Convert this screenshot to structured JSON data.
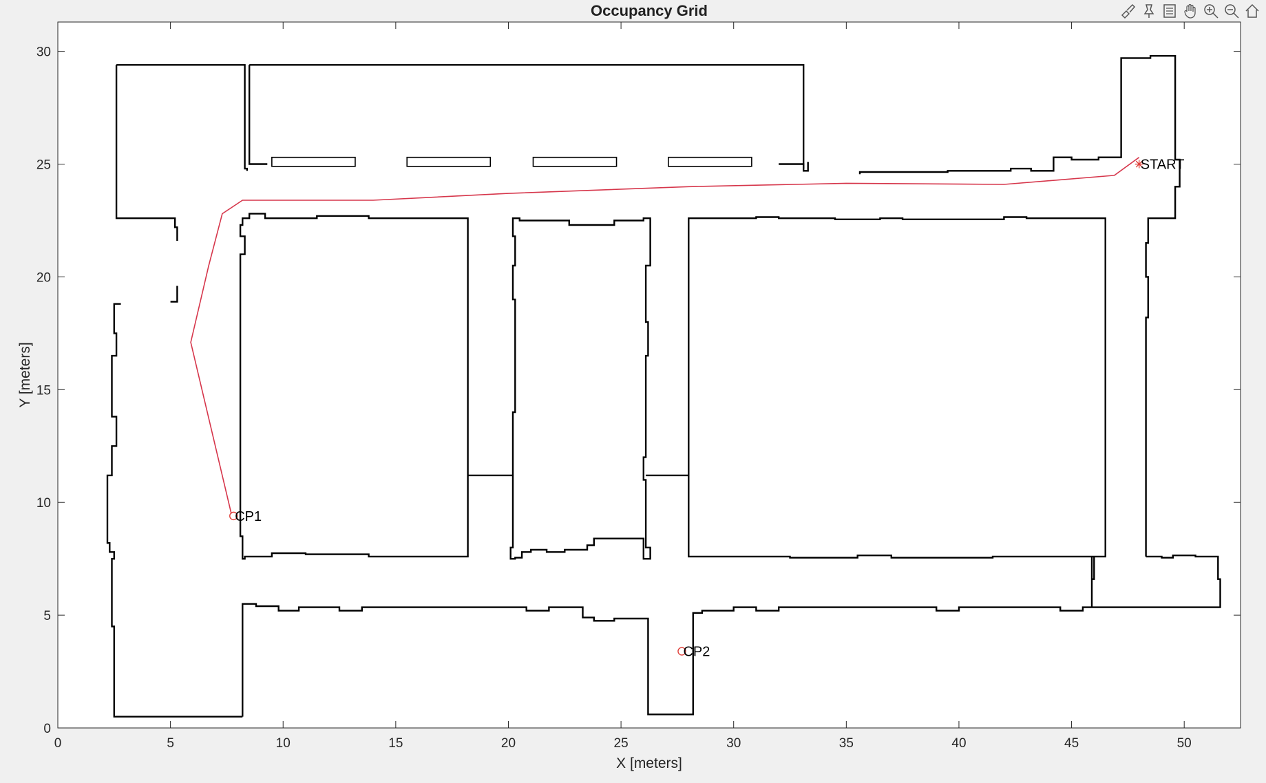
{
  "toolbar": {
    "icons": [
      "brush-icon",
      "data-tips-icon",
      "legend-icon",
      "pan-icon",
      "zoom-in-icon",
      "zoom-out-icon",
      "home-icon"
    ]
  },
  "colors": {
    "walls": "#000000",
    "path": "#d6364b",
    "markers": "#e0403a",
    "background": "#f0f0f0",
    "axes_bg": "#ffffff"
  },
  "chart_data": {
    "type": "line",
    "title": "Occupancy Grid",
    "xlabel": "X [meters]",
    "ylabel": "Y [meters]",
    "xlim": [
      0,
      52.5
    ],
    "ylim": [
      0,
      31.3
    ],
    "xticks": [
      0,
      5,
      10,
      15,
      20,
      25,
      30,
      35,
      40,
      45,
      50
    ],
    "yticks": [
      0,
      5,
      10,
      15,
      20,
      25,
      30
    ],
    "grid": false,
    "series": [
      {
        "marker": "line",
        "color": "#d6364b",
        "x": [
          48.0,
          46.9,
          42.0,
          35.0,
          28.0,
          20.0,
          14.0,
          8.2,
          7.3,
          6.7,
          5.9,
          7.7
        ],
        "y": [
          25.3,
          24.5,
          24.1,
          24.15,
          24.0,
          23.7,
          23.4,
          23.4,
          22.8,
          20.5,
          17.1,
          9.5
        ]
      }
    ],
    "annotations": [
      {
        "text": "START",
        "x": 48.0,
        "y": 25.0,
        "marker": "*"
      },
      {
        "text": "CP1",
        "x": 7.8,
        "y": 9.4,
        "marker": "o"
      },
      {
        "text": "CP2",
        "x": 27.7,
        "y": 3.4,
        "marker": "o"
      }
    ],
    "walls": [
      {
        "kind": "open",
        "pts": [
          [
            8.2,
            0.5
          ],
          [
            2.5,
            0.5
          ],
          [
            2.5,
            4.5
          ],
          [
            2.4,
            4.5
          ],
          [
            2.4,
            7.5
          ],
          [
            2.5,
            7.5
          ],
          [
            2.5,
            7.8
          ],
          [
            2.3,
            7.8
          ],
          [
            2.3,
            8.2
          ],
          [
            2.2,
            8.2
          ],
          [
            2.2,
            11.2
          ],
          [
            2.4,
            11.2
          ],
          [
            2.4,
            12.5
          ],
          [
            2.6,
            12.5
          ],
          [
            2.6,
            13.8
          ],
          [
            2.4,
            13.8
          ],
          [
            2.4,
            16.5
          ],
          [
            2.6,
            16.5
          ],
          [
            2.6,
            17.5
          ],
          [
            2.5,
            17.5
          ],
          [
            2.5,
            18.8
          ],
          [
            2.8,
            18.8
          ]
        ]
      },
      {
        "kind": "open",
        "pts": [
          [
            8.2,
            0.5
          ],
          [
            8.2,
            5.5
          ],
          [
            8.8,
            5.5
          ],
          [
            8.8,
            5.4
          ],
          [
            9.8,
            5.4
          ],
          [
            9.8,
            5.2
          ],
          [
            10.7,
            5.2
          ],
          [
            10.7,
            5.35
          ],
          [
            12.5,
            5.35
          ],
          [
            12.5,
            5.2
          ],
          [
            13.5,
            5.2
          ],
          [
            13.5,
            5.35
          ],
          [
            20.8,
            5.35
          ],
          [
            20.8,
            5.2
          ],
          [
            21.8,
            5.2
          ],
          [
            21.8,
            5.35
          ],
          [
            23.3,
            5.35
          ],
          [
            23.3,
            4.9
          ],
          [
            23.8,
            4.9
          ],
          [
            23.8,
            4.75
          ],
          [
            24.7,
            4.75
          ],
          [
            24.7,
            4.85
          ],
          [
            26.2,
            4.85
          ],
          [
            26.2,
            0.6
          ],
          [
            28.2,
            0.6
          ],
          [
            28.2,
            5.1
          ],
          [
            28.6,
            5.1
          ],
          [
            28.6,
            5.2
          ],
          [
            30.0,
            5.2
          ],
          [
            30.0,
            5.35
          ],
          [
            31.0,
            5.35
          ],
          [
            31.0,
            5.2
          ],
          [
            32.0,
            5.2
          ],
          [
            32.0,
            5.35
          ],
          [
            39.0,
            5.35
          ],
          [
            39.0,
            5.2
          ],
          [
            40.0,
            5.2
          ],
          [
            40.0,
            5.35
          ],
          [
            44.5,
            5.35
          ],
          [
            44.5,
            5.2
          ],
          [
            45.5,
            5.2
          ],
          [
            45.5,
            5.35
          ],
          [
            51.6,
            5.35
          ],
          [
            51.6,
            6.6
          ],
          [
            51.5,
            6.6
          ],
          [
            51.5,
            7.6
          ],
          [
            50.5,
            7.6
          ],
          [
            50.5,
            7.65
          ],
          [
            49.5,
            7.65
          ],
          [
            49.5,
            7.55
          ],
          [
            49.0,
            7.55
          ],
          [
            49.0,
            7.6
          ],
          [
            48.3,
            7.6
          ]
        ]
      },
      {
        "kind": "open",
        "pts": [
          [
            48.3,
            7.6
          ],
          [
            48.3,
            18.2
          ],
          [
            48.4,
            18.2
          ],
          [
            48.4,
            20.0
          ],
          [
            48.3,
            20.0
          ],
          [
            48.3,
            21.5
          ],
          [
            48.4,
            21.5
          ],
          [
            48.4,
            22.6
          ],
          [
            49.6,
            22.6
          ],
          [
            49.6,
            24.0
          ],
          [
            49.8,
            24.0
          ],
          [
            49.8,
            25.2
          ],
          [
            49.6,
            25.2
          ],
          [
            49.6,
            29.8
          ],
          [
            48.5,
            29.8
          ],
          [
            48.5,
            29.7
          ],
          [
            47.2,
            29.7
          ],
          [
            47.2,
            25.3
          ],
          [
            46.2,
            25.3
          ],
          [
            46.2,
            25.2
          ],
          [
            45.0,
            25.2
          ],
          [
            45.0,
            25.3
          ],
          [
            44.2,
            25.3
          ],
          [
            44.2,
            24.7
          ],
          [
            43.2,
            24.7
          ],
          [
            43.2,
            24.8
          ],
          [
            42.3,
            24.8
          ],
          [
            42.3,
            24.7
          ],
          [
            39.5,
            24.7
          ],
          [
            39.5,
            24.65
          ],
          [
            35.6,
            24.65
          ],
          [
            35.6,
            24.55
          ]
        ]
      },
      {
        "kind": "open",
        "pts": [
          [
            45.9,
            5.35
          ],
          [
            45.9,
            7.6
          ]
        ]
      },
      {
        "kind": "open",
        "pts": [
          [
            45.9,
            6.6
          ],
          [
            46.0,
            6.6
          ],
          [
            46.0,
            7.6
          ]
        ]
      },
      {
        "kind": "open",
        "pts": [
          [
            2.6,
            29.4
          ],
          [
            2.6,
            22.6
          ],
          [
            5.2,
            22.6
          ],
          [
            5.2,
            22.2
          ],
          [
            5.3,
            22.2
          ],
          [
            5.3,
            21.6
          ]
        ]
      },
      {
        "kind": "open",
        "pts": [
          [
            5.3,
            19.6
          ],
          [
            5.3,
            18.9
          ],
          [
            5.0,
            18.9
          ]
        ]
      },
      {
        "kind": "open",
        "pts": [
          [
            2.6,
            29.4
          ],
          [
            8.3,
            29.4
          ],
          [
            8.3,
            24.8
          ],
          [
            8.4,
            24.8
          ],
          [
            8.4,
            24.7
          ]
        ]
      },
      {
        "kind": "open",
        "pts": [
          [
            8.5,
            29.4
          ],
          [
            33.1,
            29.4
          ],
          [
            33.1,
            24.8
          ]
        ]
      },
      {
        "kind": "open",
        "pts": [
          [
            8.5,
            29.4
          ],
          [
            8.5,
            25.0
          ],
          [
            9.3,
            25.0
          ]
        ]
      },
      {
        "kind": "open",
        "pts": [
          [
            32.0,
            25.0
          ],
          [
            33.1,
            25.0
          ],
          [
            33.1,
            24.7
          ],
          [
            33.3,
            24.7
          ],
          [
            33.3,
            25.1
          ]
        ]
      },
      {
        "kind": "rect",
        "x0": 9.5,
        "y0": 24.9,
        "x1": 13.2,
        "y1": 25.3
      },
      {
        "kind": "rect",
        "x0": 15.5,
        "y0": 24.9,
        "x1": 19.2,
        "y1": 25.3
      },
      {
        "kind": "rect",
        "x0": 21.1,
        "y0": 24.9,
        "x1": 24.8,
        "y1": 25.3
      },
      {
        "kind": "rect",
        "x0": 27.1,
        "y0": 24.9,
        "x1": 30.8,
        "y1": 25.3
      },
      {
        "kind": "closed",
        "pts": [
          [
            8.2,
            22.6
          ],
          [
            8.5,
            22.6
          ],
          [
            8.5,
            22.8
          ],
          [
            9.2,
            22.8
          ],
          [
            9.2,
            22.6
          ],
          [
            11.5,
            22.6
          ],
          [
            11.5,
            22.7
          ],
          [
            13.8,
            22.7
          ],
          [
            13.8,
            22.6
          ],
          [
            18.2,
            22.6
          ],
          [
            18.2,
            7.6
          ],
          [
            13.8,
            7.6
          ],
          [
            13.8,
            7.7
          ],
          [
            11.0,
            7.7
          ],
          [
            11.0,
            7.75
          ],
          [
            9.5,
            7.75
          ],
          [
            9.5,
            7.6
          ],
          [
            8.3,
            7.6
          ],
          [
            8.3,
            7.5
          ],
          [
            8.2,
            7.5
          ],
          [
            8.2,
            8.5
          ],
          [
            8.1,
            8.5
          ],
          [
            8.1,
            21.0
          ],
          [
            8.3,
            21.0
          ],
          [
            8.3,
            21.8
          ],
          [
            8.1,
            21.8
          ],
          [
            8.1,
            22.3
          ],
          [
            8.2,
            22.3
          ]
        ]
      },
      {
        "kind": "closed",
        "pts": [
          [
            20.2,
            22.6
          ],
          [
            20.5,
            22.6
          ],
          [
            20.5,
            22.5
          ],
          [
            22.7,
            22.5
          ],
          [
            22.7,
            22.3
          ],
          [
            24.7,
            22.3
          ],
          [
            24.7,
            22.5
          ],
          [
            26.0,
            22.5
          ],
          [
            26.0,
            22.6
          ],
          [
            26.3,
            22.6
          ],
          [
            26.3,
            20.5
          ],
          [
            26.1,
            20.5
          ],
          [
            26.1,
            18.0
          ],
          [
            26.2,
            18.0
          ],
          [
            26.2,
            16.5
          ],
          [
            26.1,
            16.5
          ],
          [
            26.1,
            12.0
          ],
          [
            26.0,
            12.0
          ],
          [
            26.0,
            11.0
          ],
          [
            26.1,
            11.0
          ],
          [
            26.1,
            8.0
          ],
          [
            26.3,
            8.0
          ],
          [
            26.3,
            7.5
          ],
          [
            26.0,
            7.5
          ],
          [
            26.0,
            8.4
          ],
          [
            23.8,
            8.4
          ],
          [
            23.8,
            8.1
          ],
          [
            23.5,
            8.1
          ],
          [
            23.5,
            7.9
          ],
          [
            22.5,
            7.9
          ],
          [
            22.5,
            7.8
          ],
          [
            21.7,
            7.8
          ],
          [
            21.7,
            7.9
          ],
          [
            21.0,
            7.9
          ],
          [
            21.0,
            7.8
          ],
          [
            20.6,
            7.8
          ],
          [
            20.6,
            7.55
          ],
          [
            20.3,
            7.55
          ],
          [
            20.3,
            7.5
          ],
          [
            20.1,
            7.5
          ],
          [
            20.1,
            8.0
          ],
          [
            20.2,
            8.0
          ],
          [
            20.2,
            14.0
          ],
          [
            20.3,
            14.0
          ],
          [
            20.3,
            19.0
          ],
          [
            20.2,
            19.0
          ],
          [
            20.2,
            20.5
          ],
          [
            20.3,
            20.5
          ],
          [
            20.3,
            21.8
          ],
          [
            20.2,
            21.8
          ]
        ]
      },
      {
        "kind": "closed",
        "pts": [
          [
            28.0,
            22.6
          ],
          [
            31.0,
            22.6
          ],
          [
            31.0,
            22.65
          ],
          [
            32.0,
            22.65
          ],
          [
            32.0,
            22.6
          ],
          [
            34.5,
            22.6
          ],
          [
            34.5,
            22.55
          ],
          [
            36.5,
            22.55
          ],
          [
            36.5,
            22.6
          ],
          [
            37.5,
            22.6
          ],
          [
            37.5,
            22.55
          ],
          [
            42.0,
            22.55
          ],
          [
            42.0,
            22.65
          ],
          [
            43.0,
            22.65
          ],
          [
            43.0,
            22.6
          ],
          [
            46.5,
            22.6
          ],
          [
            46.5,
            7.6
          ],
          [
            41.5,
            7.6
          ],
          [
            41.5,
            7.55
          ],
          [
            37.0,
            7.55
          ],
          [
            37.0,
            7.65
          ],
          [
            35.5,
            7.65
          ],
          [
            35.5,
            7.55
          ],
          [
            32.5,
            7.55
          ],
          [
            32.5,
            7.6
          ],
          [
            28.0,
            7.6
          ]
        ]
      },
      {
        "kind": "open",
        "pts": [
          [
            18.2,
            11.2
          ],
          [
            20.2,
            11.2
          ]
        ]
      },
      {
        "kind": "open",
        "pts": [
          [
            26.1,
            11.2
          ],
          [
            28.0,
            11.2
          ]
        ]
      }
    ]
  }
}
